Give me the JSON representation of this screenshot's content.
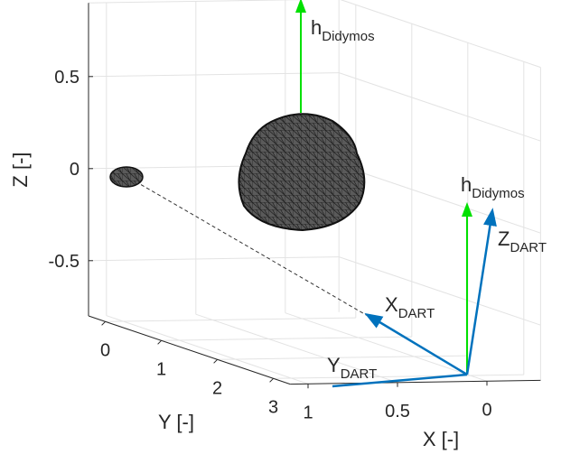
{
  "chart_data": {
    "type": "3d",
    "xlabel": "X [-]",
    "ylabel": "Y [-]",
    "zlabel": "Z [-]",
    "xlim": [
      -0.3,
      1.1
    ],
    "ylim": [
      -0.3,
      3.3
    ],
    "zlim": [
      -0.8,
      0.9
    ],
    "xticks": [
      0,
      0.5,
      1
    ],
    "yticks": [
      0,
      1,
      2,
      3
    ],
    "zticks": [
      -0.5,
      0,
      0.5
    ],
    "grid": true,
    "annotations": [
      {
        "base": "h",
        "sub": "Didymos"
      },
      {
        "base": "h",
        "sub": "Didymos"
      },
      {
        "base": "Z",
        "sub": "DART"
      },
      {
        "base": "X",
        "sub": "DART"
      },
      {
        "base": "Y",
        "sub": "DART"
      }
    ]
  }
}
